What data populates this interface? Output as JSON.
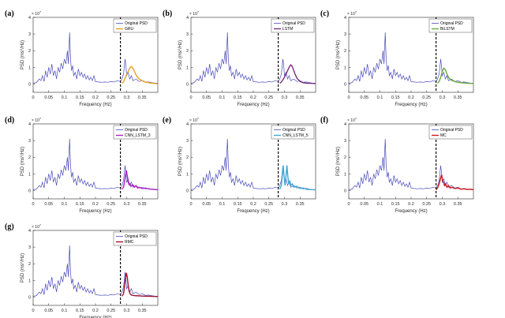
{
  "chart_data": [
    {
      "panel": "(a)",
      "type": "line",
      "legend": [
        "Original PSD",
        "GRU"
      ],
      "pred_color": "#e6a020",
      "pred": [
        [
          0.285,
          0.05
        ],
        [
          0.29,
          0.12
        ],
        [
          0.295,
          0.35
        ],
        [
          0.3,
          0.55
        ],
        [
          0.305,
          0.75
        ],
        [
          0.31,
          0.95
        ],
        [
          0.315,
          1.05
        ],
        [
          0.32,
          0.95
        ],
        [
          0.325,
          0.75
        ],
        [
          0.33,
          0.55
        ],
        [
          0.335,
          0.4
        ],
        [
          0.34,
          0.3
        ],
        [
          0.35,
          0.2
        ],
        [
          0.36,
          0.12
        ],
        [
          0.37,
          0.08
        ],
        [
          0.38,
          0.05
        ],
        [
          0.39,
          0.03
        ],
        [
          0.4,
          0.02
        ]
      ]
    },
    {
      "panel": "(b)",
      "type": "line",
      "legend": [
        "Original PSD",
        "LSTM"
      ],
      "pred_color": "#7b2d7f",
      "pred": [
        [
          0.285,
          0.05
        ],
        [
          0.29,
          0.12
        ],
        [
          0.295,
          0.25
        ],
        [
          0.3,
          0.4
        ],
        [
          0.305,
          0.6
        ],
        [
          0.31,
          0.8
        ],
        [
          0.315,
          1.0
        ],
        [
          0.32,
          1.15
        ],
        [
          0.325,
          1.05
        ],
        [
          0.33,
          0.8
        ],
        [
          0.335,
          0.55
        ],
        [
          0.34,
          0.35
        ],
        [
          0.35,
          0.15
        ],
        [
          0.36,
          0.08
        ],
        [
          0.37,
          0.05
        ],
        [
          0.38,
          0.04
        ],
        [
          0.4,
          0.03
        ]
      ]
    },
    {
      "panel": "(c)",
      "type": "line",
      "legend": [
        "Original PSD",
        "BiLSTM"
      ],
      "pred_color": "#6aaa3a",
      "pred": [
        [
          0.285,
          0.05
        ],
        [
          0.29,
          0.15
        ],
        [
          0.295,
          0.4
        ],
        [
          0.3,
          0.75
        ],
        [
          0.305,
          0.95
        ],
        [
          0.31,
          0.85
        ],
        [
          0.315,
          0.6
        ],
        [
          0.32,
          0.4
        ],
        [
          0.325,
          0.3
        ],
        [
          0.33,
          0.22
        ],
        [
          0.34,
          0.15
        ],
        [
          0.35,
          0.1
        ],
        [
          0.36,
          0.08
        ],
        [
          0.37,
          0.06
        ],
        [
          0.38,
          0.04
        ],
        [
          0.4,
          0.03
        ]
      ]
    },
    {
      "panel": "(d)",
      "type": "line",
      "legend": [
        "Original PSD",
        "CNN_LSTM_3"
      ],
      "pred_color": "#b020c8",
      "pred": [
        [
          0.285,
          0.08
        ],
        [
          0.29,
          0.2
        ],
        [
          0.293,
          0.5
        ],
        [
          0.296,
          0.9
        ],
        [
          0.299,
          1.2
        ],
        [
          0.302,
          0.9
        ],
        [
          0.305,
          0.5
        ],
        [
          0.308,
          0.35
        ],
        [
          0.311,
          0.4
        ],
        [
          0.314,
          0.25
        ],
        [
          0.32,
          0.35
        ],
        [
          0.325,
          0.2
        ],
        [
          0.33,
          0.3
        ],
        [
          0.335,
          0.15
        ],
        [
          0.34,
          0.2
        ],
        [
          0.35,
          0.12
        ],
        [
          0.36,
          0.15
        ],
        [
          0.37,
          0.1
        ],
        [
          0.38,
          0.08
        ],
        [
          0.4,
          0.05
        ]
      ]
    },
    {
      "panel": "(e)",
      "type": "line",
      "legend": [
        "Original PSD",
        "CNN_LSTM_5"
      ],
      "pred_color": "#3aa8d8",
      "pred": [
        [
          0.285,
          0.08
        ],
        [
          0.29,
          0.3
        ],
        [
          0.293,
          0.9
        ],
        [
          0.296,
          1.5
        ],
        [
          0.299,
          0.8
        ],
        [
          0.302,
          0.3
        ],
        [
          0.305,
          0.9
        ],
        [
          0.308,
          1.5
        ],
        [
          0.311,
          0.8
        ],
        [
          0.314,
          0.4
        ],
        [
          0.317,
          0.6
        ],
        [
          0.32,
          0.3
        ],
        [
          0.325,
          0.4
        ],
        [
          0.33,
          0.2
        ],
        [
          0.34,
          0.25
        ],
        [
          0.35,
          0.12
        ],
        [
          0.36,
          0.15
        ],
        [
          0.37,
          0.08
        ],
        [
          0.38,
          0.06
        ],
        [
          0.4,
          0.04
        ]
      ]
    },
    {
      "panel": "(f)",
      "type": "line",
      "legend": [
        "Original PSD",
        "MC"
      ],
      "pred_color": "#d11a1a",
      "pred": [
        [
          0.28,
          0.05
        ],
        [
          0.285,
          0.15
        ],
        [
          0.29,
          0.4
        ],
        [
          0.295,
          0.75
        ],
        [
          0.298,
          0.95
        ],
        [
          0.301,
          0.6
        ],
        [
          0.304,
          0.5
        ],
        [
          0.307,
          0.3
        ],
        [
          0.31,
          0.4
        ],
        [
          0.315,
          0.2
        ],
        [
          0.32,
          0.3
        ],
        [
          0.325,
          0.15
        ],
        [
          0.33,
          0.2
        ],
        [
          0.34,
          0.12
        ],
        [
          0.35,
          0.15
        ],
        [
          0.36,
          0.08
        ],
        [
          0.37,
          0.1
        ],
        [
          0.38,
          0.06
        ],
        [
          0.39,
          0.08
        ],
        [
          0.4,
          0.05
        ]
      ]
    },
    {
      "panel": "(g)",
      "type": "line",
      "legend": [
        "Original PSD",
        "RMC"
      ],
      "pred_color": "#a01030",
      "pred": [
        [
          0.285,
          0.05
        ],
        [
          0.29,
          0.2
        ],
        [
          0.293,
          0.6
        ],
        [
          0.296,
          1.1
        ],
        [
          0.299,
          1.45
        ],
        [
          0.302,
          1.2
        ],
        [
          0.305,
          0.7
        ],
        [
          0.308,
          0.35
        ],
        [
          0.311,
          0.2
        ],
        [
          0.315,
          0.12
        ],
        [
          0.32,
          0.1
        ],
        [
          0.33,
          0.08
        ],
        [
          0.34,
          0.07
        ],
        [
          0.35,
          0.06
        ],
        [
          0.36,
          0.05
        ],
        [
          0.37,
          0.05
        ],
        [
          0.38,
          0.04
        ],
        [
          0.4,
          0.03
        ]
      ]
    }
  ],
  "axes": {
    "xlabel": "Frequency (Hz)",
    "ylabel": "PSD (ms^2/Hz)",
    "ylabel_main": "PSD (ms",
    "ylabel_sup": "2",
    "ylabel_tail": "/Hz)",
    "exponent": "× 10",
    "exponent_power": "7",
    "xlim": [
      0,
      0.4
    ],
    "ylim": [
      -0.5,
      4
    ],
    "xticks": [
      0,
      0.05,
      0.1,
      0.15,
      0.2,
      0.25,
      0.3,
      0.35
    ],
    "xtick_labels": [
      "0",
      "0.05",
      "0.1",
      "0.15",
      "0.2",
      "0.25",
      "0.3",
      "0.35"
    ],
    "yticks": [
      0,
      1,
      2,
      3,
      4
    ],
    "ytick_labels": [
      "0",
      "1",
      "2",
      "3",
      "4"
    ],
    "cut_frequency": 0.28
  },
  "original_psd": {
    "color": "#4a4aba",
    "points": [
      [
        0,
        0.05
      ],
      [
        0.01,
        0.08
      ],
      [
        0.02,
        0.3
      ],
      [
        0.025,
        0.2
      ],
      [
        0.03,
        0.5
      ],
      [
        0.035,
        0.15
      ],
      [
        0.04,
        0.8
      ],
      [
        0.045,
        0.4
      ],
      [
        0.05,
        1.0
      ],
      [
        0.055,
        0.6
      ],
      [
        0.06,
        1.2
      ],
      [
        0.065,
        0.5
      ],
      [
        0.07,
        0.8
      ],
      [
        0.075,
        0.3
      ],
      [
        0.08,
        1.0
      ],
      [
        0.085,
        0.7
      ],
      [
        0.09,
        1.25
      ],
      [
        0.095,
        0.9
      ],
      [
        0.1,
        1.5
      ],
      [
        0.105,
        1.2
      ],
      [
        0.11,
        2.0
      ],
      [
        0.113,
        1.2
      ],
      [
        0.117,
        3.1
      ],
      [
        0.12,
        1.5
      ],
      [
        0.123,
        0.8
      ],
      [
        0.127,
        1.1
      ],
      [
        0.13,
        0.5
      ],
      [
        0.135,
        0.7
      ],
      [
        0.14,
        0.3
      ],
      [
        0.145,
        0.9
      ],
      [
        0.15,
        0.5
      ],
      [
        0.155,
        0.7
      ],
      [
        0.16,
        0.4
      ],
      [
        0.165,
        0.6
      ],
      [
        0.17,
        0.3
      ],
      [
        0.175,
        0.5
      ],
      [
        0.18,
        0.25
      ],
      [
        0.185,
        0.4
      ],
      [
        0.19,
        0.2
      ],
      [
        0.195,
        0.5
      ],
      [
        0.2,
        0.15
      ],
      [
        0.21,
        0.12
      ],
      [
        0.22,
        0.1
      ],
      [
        0.23,
        0.12
      ],
      [
        0.24,
        0.1
      ],
      [
        0.25,
        0.15
      ],
      [
        0.26,
        0.12
      ],
      [
        0.27,
        0.2
      ],
      [
        0.28,
        0.15
      ],
      [
        0.285,
        0.3
      ],
      [
        0.29,
        0.6
      ],
      [
        0.295,
        1.5
      ],
      [
        0.298,
        1.0
      ],
      [
        0.3,
        0.5
      ],
      [
        0.305,
        0.7
      ],
      [
        0.31,
        0.3
      ],
      [
        0.315,
        0.5
      ],
      [
        0.32,
        0.2
      ],
      [
        0.33,
        0.3
      ],
      [
        0.34,
        0.15
      ],
      [
        0.35,
        0.2
      ],
      [
        0.36,
        0.1
      ],
      [
        0.37,
        0.12
      ],
      [
        0.38,
        0.08
      ],
      [
        0.39,
        0.06
      ],
      [
        0.4,
        0.05
      ]
    ]
  }
}
